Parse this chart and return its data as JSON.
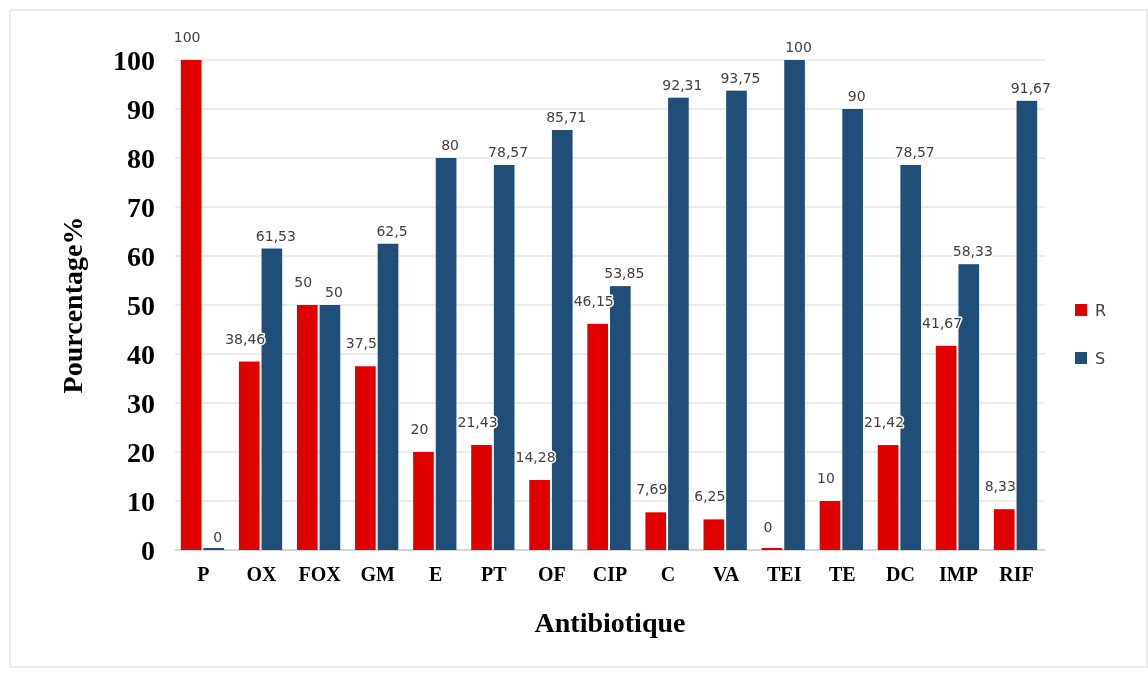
{
  "chart_data": {
    "type": "bar",
    "xlabel": "Antibiotique",
    "ylabel": "Pourcentage%",
    "categories": [
      "P",
      "OX",
      "FOX",
      "GM",
      "E",
      "PT",
      "OF",
      "CIP",
      "C",
      "VA",
      "TEI",
      "TE",
      "DC",
      "IMP",
      "RIF"
    ],
    "series": [
      {
        "name": "R",
        "color": "#e00000",
        "values": [
          100,
          38.46,
          50,
          37.5,
          20,
          21.43,
          14.28,
          46.15,
          7.69,
          6.25,
          0,
          10,
          21.42,
          41.67,
          8.33
        ],
        "value_labels": [
          "100",
          "38,46",
          "50",
          "37,5",
          "20",
          "21,43",
          "14,28",
          "46,15",
          "7,69",
          "6,25",
          "0",
          "10",
          "21,42",
          "41,67",
          "8,33"
        ]
      },
      {
        "name": "S",
        "color": "#1f4e79",
        "values": [
          0,
          61.53,
          50,
          62.5,
          80,
          78.57,
          85.71,
          53.85,
          92.31,
          93.75,
          100,
          90,
          78.57,
          58.33,
          91.67
        ],
        "value_labels": [
          "0",
          "61,53",
          "50",
          "62,5",
          "80",
          "78,57",
          "85,71",
          "53,85",
          "92,31",
          "93,75",
          "100",
          "90",
          "78,57",
          "58,33",
          "91,67"
        ]
      }
    ],
    "ylim": [
      0,
      100
    ],
    "yticks": [
      0,
      10,
      20,
      30,
      40,
      50,
      60,
      70,
      80,
      90,
      100
    ],
    "grid": "y",
    "legend": "right"
  }
}
